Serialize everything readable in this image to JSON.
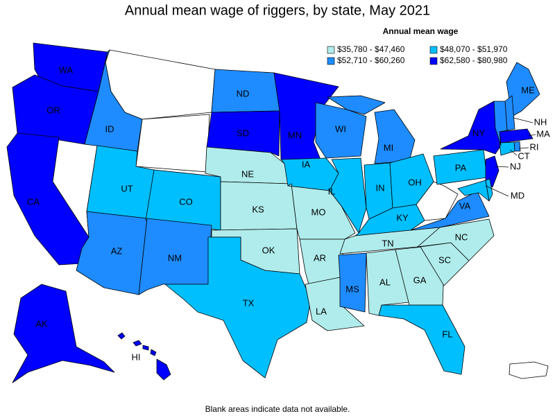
{
  "title": "Annual mean wage of riggers, by state, May 2021",
  "legend": {
    "title": "Annual mean wage",
    "classes": [
      {
        "label": "$35,780 - $47,460",
        "color": "#b0ecec"
      },
      {
        "label": "$48,070 - $51,970",
        "color": "#00bfff"
      },
      {
        "label": "$52,710 - $60,260",
        "color": "#1e8cff"
      },
      {
        "label": "$62,580 - $80,980",
        "color": "#0000ff"
      }
    ]
  },
  "states": [
    {
      "label": "WA",
      "bin": 3
    },
    {
      "label": "OR",
      "bin": 3
    },
    {
      "label": "CA",
      "bin": 3
    },
    {
      "label": "ID",
      "bin": 2
    },
    {
      "label": "UT",
      "bin": 1
    },
    {
      "label": "AZ",
      "bin": 2
    },
    {
      "label": "CO",
      "bin": 1
    },
    {
      "label": "NM",
      "bin": 2
    },
    {
      "label": "ND",
      "bin": 2
    },
    {
      "label": "SD",
      "bin": 3
    },
    {
      "label": "NE",
      "bin": 0
    },
    {
      "label": "KS",
      "bin": 0
    },
    {
      "label": "OK",
      "bin": 0
    },
    {
      "label": "TX",
      "bin": 1
    },
    {
      "label": "MN",
      "bin": 3
    },
    {
      "label": "IA",
      "bin": 1
    },
    {
      "label": "MO",
      "bin": 0
    },
    {
      "label": "AR",
      "bin": 0
    },
    {
      "label": "LA",
      "bin": 0
    },
    {
      "label": "WI",
      "bin": 2
    },
    {
      "label": "IL",
      "bin": 1
    },
    {
      "label": "MI",
      "bin": 2
    },
    {
      "label": "IN",
      "bin": 1
    },
    {
      "label": "OH",
      "bin": 1
    },
    {
      "label": "KY",
      "bin": 1
    },
    {
      "label": "TN",
      "bin": 0
    },
    {
      "label": "MS",
      "bin": 2
    },
    {
      "label": "AL",
      "bin": 0
    },
    {
      "label": "GA",
      "bin": 0
    },
    {
      "label": "FL",
      "bin": 1
    },
    {
      "label": "SC",
      "bin": 0
    },
    {
      "label": "NC",
      "bin": 0
    },
    {
      "label": "VA",
      "bin": 2
    },
    {
      "label": "PA",
      "bin": 1
    },
    {
      "label": "NY",
      "bin": 3
    },
    {
      "label": "ME",
      "bin": 2
    },
    {
      "label": "NH",
      "bin": 2
    },
    {
      "label": "MA",
      "bin": 3
    },
    {
      "label": "RI",
      "bin": 2
    },
    {
      "label": "CT",
      "bin": 1
    },
    {
      "label": "NJ",
      "bin": 3
    },
    {
      "label": "MD",
      "bin": 1
    },
    {
      "label": "AK",
      "bin": 3
    },
    {
      "label": "HI",
      "bin": 3
    },
    {
      "label": null,
      "bin": 2
    },
    {
      "label": null,
      "bin": 1
    }
  ],
  "footnote": "Blank areas indicate data not available."
}
